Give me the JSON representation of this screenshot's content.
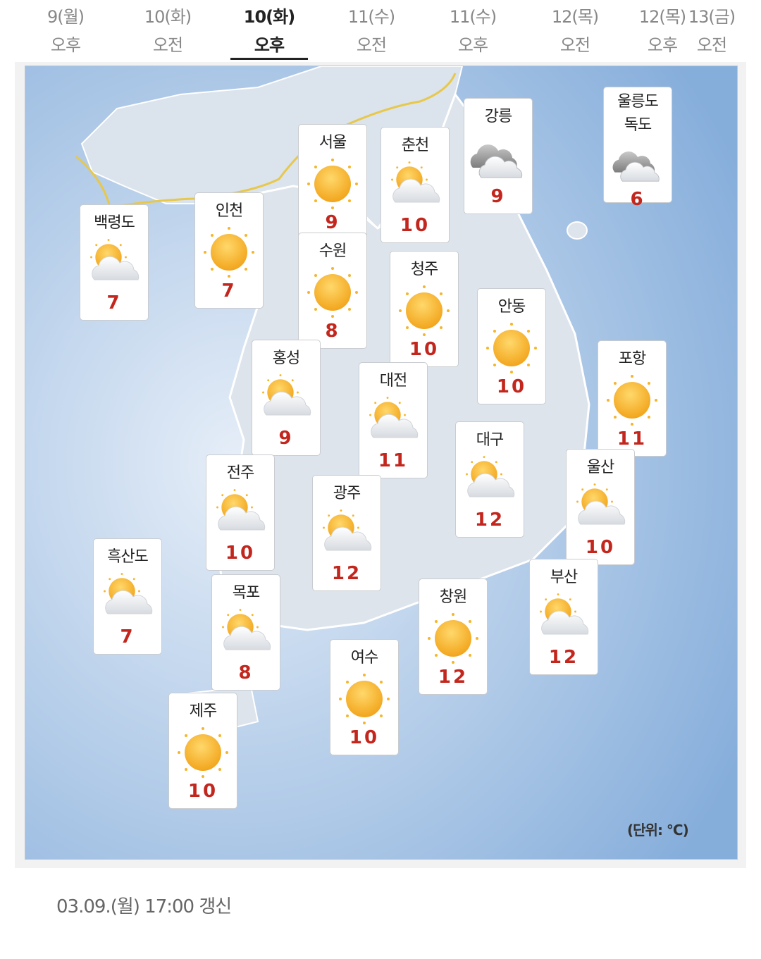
{
  "tabs": [
    {
      "date": "9(월)",
      "period": "오후"
    },
    {
      "date": "10(화)",
      "period": "오전"
    },
    {
      "date": "10(화)",
      "period": "오후"
    },
    {
      "date": "11(수)",
      "period": "오전"
    },
    {
      "date": "11(수)",
      "period": "오후"
    },
    {
      "date": "12(목)",
      "period": "오전"
    },
    {
      "date": "12(목)",
      "period": "오후"
    },
    {
      "date": "13(금)",
      "period": "오전"
    }
  ],
  "cities": [
    {
      "name": "백령도",
      "temp": 7
    },
    {
      "name": "인천",
      "temp": 7
    },
    {
      "name": "서울",
      "temp": 9
    },
    {
      "name": "수원",
      "temp": 8
    },
    {
      "name": "춘천",
      "temp": 10
    },
    {
      "name": "강릉",
      "temp": 9
    },
    {
      "name": "울릉도 독도",
      "temp": 6
    },
    {
      "name": "청주",
      "temp": 10
    },
    {
      "name": "안동",
      "temp": 10
    },
    {
      "name": "홍성",
      "temp": 9
    },
    {
      "name": "대전",
      "temp": 11
    },
    {
      "name": "포항",
      "temp": 11
    },
    {
      "name": "대구",
      "temp": 12
    },
    {
      "name": "울산",
      "temp": 10
    },
    {
      "name": "전주",
      "temp": 10
    },
    {
      "name": "광주",
      "temp": 12
    },
    {
      "name": "흑산도",
      "temp": 7
    },
    {
      "name": "목포",
      "temp": 8
    },
    {
      "name": "창원",
      "temp": 12
    },
    {
      "name": "부산",
      "temp": 12
    },
    {
      "name": "여수",
      "temp": 10
    },
    {
      "name": "제주",
      "temp": 10
    }
  ],
  "unit": "(단위: °C)",
  "updated": "03.09.(월) 17:00 갱신"
}
